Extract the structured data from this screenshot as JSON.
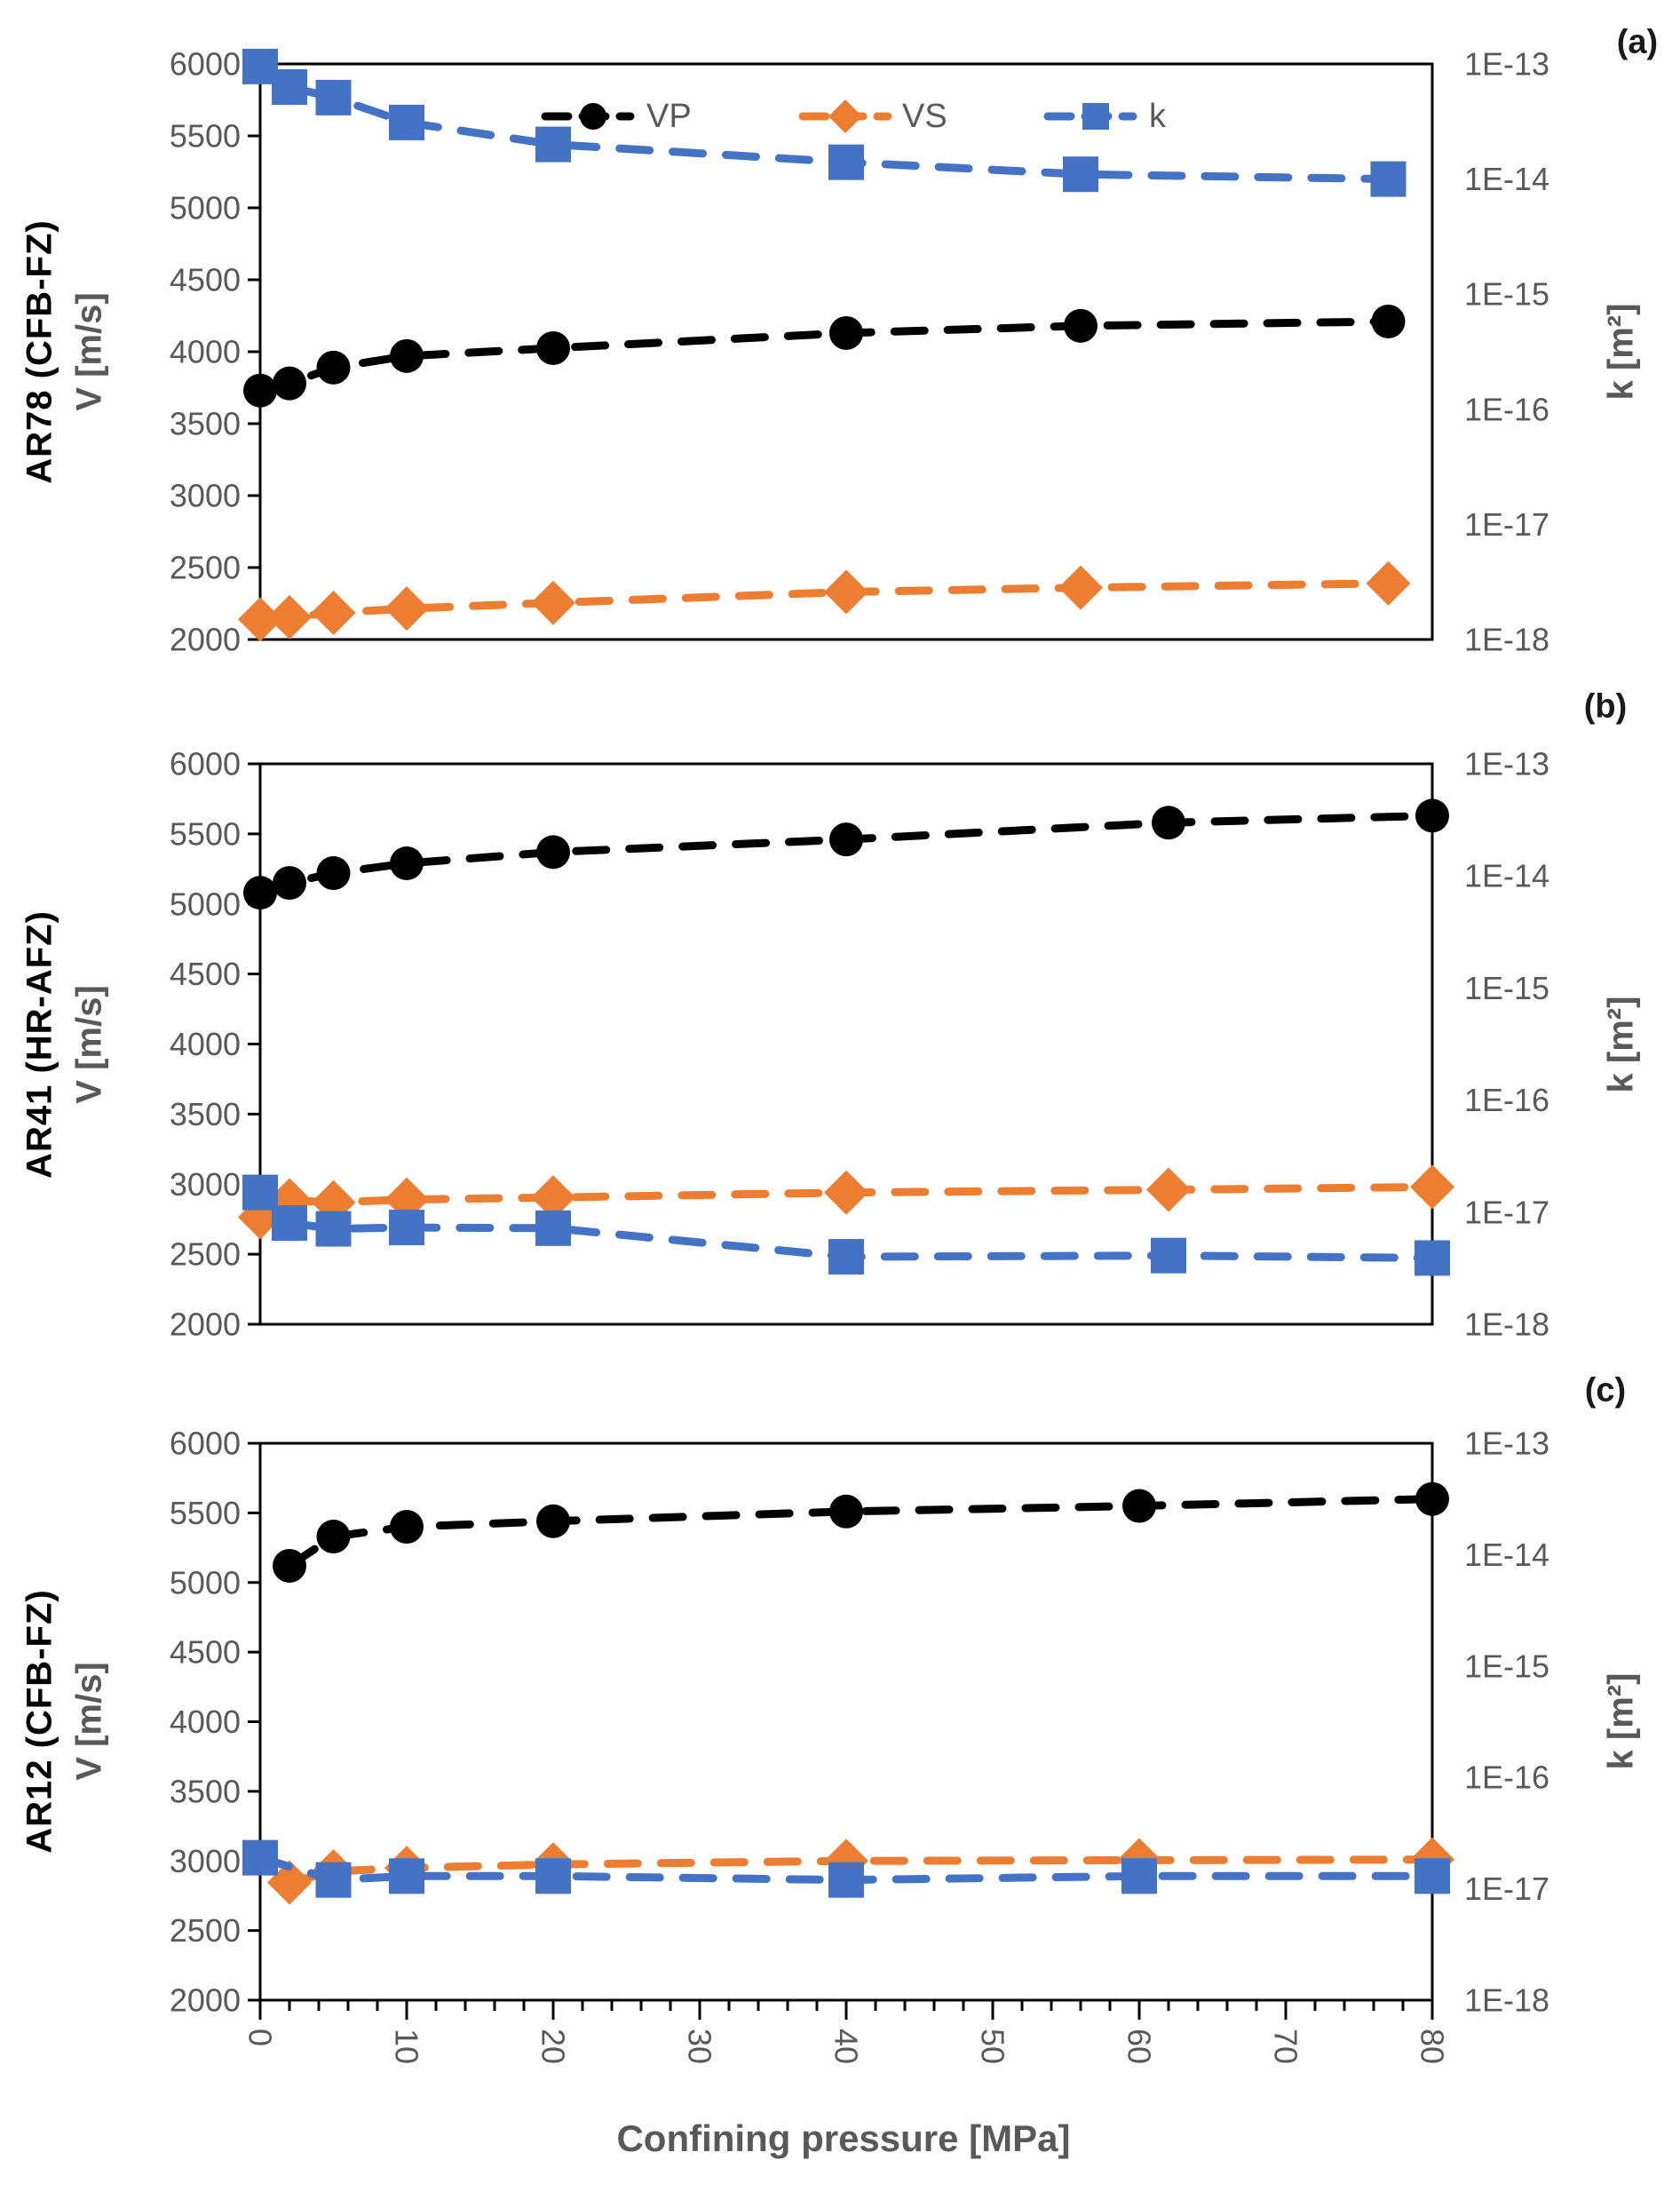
{
  "figure": {
    "xlabel": "Confining pressure [MPa]",
    "x_axis": {
      "min": 0,
      "max": 80,
      "major_ticks": [
        0,
        10,
        20,
        30,
        40,
        50,
        60,
        70,
        80
      ],
      "minor_step": 2
    },
    "v_axis": {
      "label": "V [m/s]",
      "min": 2000,
      "max": 6000,
      "ticks": [
        6000,
        5500,
        5000,
        4500,
        4000,
        3500,
        3000,
        2500,
        2000
      ]
    },
    "k_axis": {
      "label": "k [m²]",
      "tick_labels": [
        "1E-13",
        "1E-14",
        "1E-15",
        "1E-16",
        "1E-17",
        "1E-18"
      ],
      "log_min": -18,
      "log_max": -13
    },
    "legend": [
      {
        "label": "VP",
        "marker": "circle",
        "color": "#000000"
      },
      {
        "label": "VS",
        "marker": "diamond",
        "color": "#ED7D31"
      },
      {
        "label": "k",
        "marker": "square",
        "color": "#4472C4"
      }
    ],
    "colors": {
      "vp": "#000000",
      "vs": "#ED7D31",
      "k": "#4472C4",
      "axis_text": "#595959",
      "axis_line": "#000000"
    }
  },
  "chart_data": [
    {
      "type": "line",
      "panel_label": "(a)",
      "sample": "AR78 (CFB-FZ)",
      "ylabel_left": "V [m/s]",
      "ylabel_right": "k [m²]",
      "series": [
        {
          "name": "VP",
          "axis": "left",
          "marker": "circle",
          "x": [
            0,
            2,
            5,
            10,
            20,
            40,
            56,
            77
          ],
          "values": [
            3730,
            3780,
            3890,
            3970,
            4025,
            4130,
            4180,
            4210
          ]
        },
        {
          "name": "VS",
          "axis": "left",
          "marker": "diamond",
          "x": [
            0,
            2,
            5,
            10,
            20,
            40,
            56,
            77
          ],
          "values": [
            2140,
            2155,
            2185,
            2215,
            2255,
            2330,
            2360,
            2390
          ]
        },
        {
          "name": "k",
          "axis": "right",
          "marker": "square",
          "x": [
            0,
            2,
            5,
            10,
            20,
            40,
            56,
            77
          ],
          "values": [
            9.5e-14,
            6.3e-14,
            5.1e-14,
            3.1e-14,
            2e-14,
            1.4e-14,
            1.1e-14,
            1e-14
          ]
        }
      ]
    },
    {
      "type": "line",
      "panel_label": "(b)",
      "sample": "AR41 (HR-AFZ)",
      "ylabel_left": "V [m/s]",
      "ylabel_right": "k [m²]",
      "series": [
        {
          "name": "VP",
          "axis": "left",
          "marker": "circle",
          "x": [
            0,
            2,
            5,
            10,
            20,
            40,
            62,
            80
          ],
          "values": [
            5080,
            5150,
            5220,
            5290,
            5370,
            5460,
            5580,
            5630
          ]
        },
        {
          "name": "VS",
          "axis": "left",
          "marker": "diamond",
          "x": [
            0,
            2,
            5,
            10,
            20,
            40,
            62,
            80
          ],
          "values": [
            2765,
            2885,
            2870,
            2890,
            2905,
            2940,
            2960,
            2980
          ]
        },
        {
          "name": "k",
          "axis": "right",
          "marker": "square",
          "x": [
            0,
            2,
            5,
            10,
            20,
            40,
            62,
            80
          ],
          "values": [
            1.5e-17,
            8e-18,
            7.1e-18,
            7.3e-18,
            7.2e-18,
            4e-18,
            4.1e-18,
            3.9e-18
          ]
        }
      ]
    },
    {
      "type": "line",
      "panel_label": "(c)",
      "sample": "AR12 (CFB-FZ)",
      "ylabel_left": "V [m/s]",
      "ylabel_right": "k [m²]",
      "series": [
        {
          "name": "VP",
          "axis": "left",
          "marker": "circle",
          "x": [
            2,
            5,
            10,
            20,
            40,
            60,
            80
          ],
          "values": [
            5120,
            5330,
            5400,
            5440,
            5510,
            5550,
            5600
          ]
        },
        {
          "name": "VS",
          "axis": "left",
          "marker": "diamond",
          "x": [
            2,
            5,
            10,
            20,
            40,
            60,
            80
          ],
          "values": [
            2845,
            2925,
            2950,
            2975,
            3000,
            3005,
            3010
          ]
        },
        {
          "name": "k",
          "axis": "right",
          "marker": "square",
          "x": [
            0,
            5,
            10,
            20,
            40,
            60,
            80
          ],
          "values": [
            1.9e-17,
            1.2e-17,
            1.3e-17,
            1.3e-17,
            1.2e-17,
            1.3e-17,
            1.3e-17
          ]
        }
      ]
    }
  ]
}
